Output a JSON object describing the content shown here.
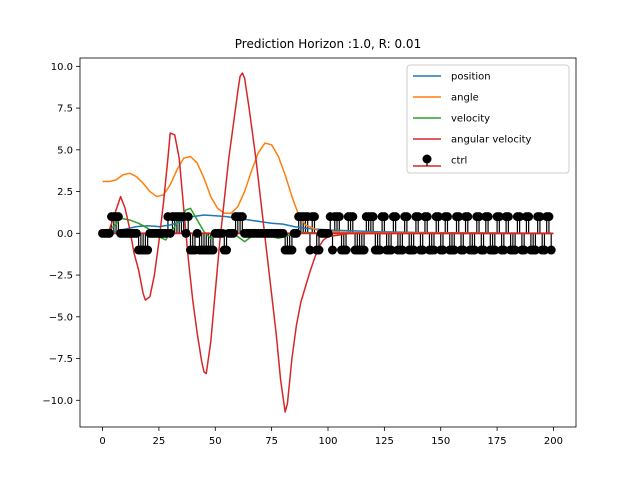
{
  "chart_data": {
    "type": "line",
    "title": "Prediction Horizon :1.0, R: 0.01",
    "xlabel": "",
    "ylabel": "",
    "xlim": [
      -10,
      210
    ],
    "ylim": [
      -11.6,
      10.5
    ],
    "x_ticks": [
      0,
      25,
      50,
      75,
      100,
      125,
      150,
      175,
      200
    ],
    "y_ticks": [
      10.0,
      7.5,
      5.0,
      2.5,
      0.0,
      -2.5,
      -5.0,
      -7.5,
      -10.0
    ],
    "x_tick_labels": [
      "0",
      "25",
      "50",
      "75",
      "100",
      "125",
      "150",
      "175",
      "200"
    ],
    "y_tick_labels": [
      "10.0",
      "7.5",
      "5.0",
      "2.5",
      "0.0",
      "−2.5",
      "−5.0",
      "−7.5",
      "−10.0"
    ],
    "grid": false,
    "legend": "top-right",
    "series": [
      {
        "name": "position",
        "color": "#1f77b4",
        "points": [
          [
            0,
            0
          ],
          [
            5,
            0.1
          ],
          [
            10,
            0.25
          ],
          [
            15,
            0.4
          ],
          [
            20,
            0.45
          ],
          [
            25,
            0.4
          ],
          [
            30,
            0.5
          ],
          [
            35,
            0.7
          ],
          [
            40,
            1.0
          ],
          [
            45,
            1.1
          ],
          [
            50,
            1.05
          ],
          [
            55,
            1.0
          ],
          [
            60,
            0.9
          ],
          [
            65,
            0.8
          ],
          [
            70,
            0.7
          ],
          [
            75,
            0.6
          ],
          [
            80,
            0.55
          ],
          [
            85,
            0.4
          ],
          [
            90,
            0.3
          ],
          [
            95,
            0.25
          ],
          [
            100,
            0.2
          ],
          [
            110,
            0.15
          ],
          [
            120,
            0.1
          ],
          [
            140,
            0.05
          ],
          [
            160,
            0.03
          ],
          [
            200,
            0.0
          ]
        ]
      },
      {
        "name": "angle",
        "color": "#ff7f0e",
        "points": [
          [
            0,
            3.1
          ],
          [
            3,
            3.1
          ],
          [
            6,
            3.2
          ],
          [
            9,
            3.5
          ],
          [
            12,
            3.6
          ],
          [
            15,
            3.4
          ],
          [
            18,
            3.0
          ],
          [
            21,
            2.5
          ],
          [
            24,
            2.2
          ],
          [
            27,
            2.3
          ],
          [
            30,
            2.9
          ],
          [
            33,
            3.8
          ],
          [
            36,
            4.5
          ],
          [
            39,
            4.6
          ],
          [
            42,
            4.2
          ],
          [
            45,
            3.3
          ],
          [
            48,
            2.2
          ],
          [
            51,
            1.5
          ],
          [
            54,
            1.2
          ],
          [
            57,
            1.2
          ],
          [
            60,
            1.6
          ],
          [
            63,
            2.5
          ],
          [
            66,
            3.7
          ],
          [
            69,
            4.8
          ],
          [
            72,
            5.4
          ],
          [
            75,
            5.3
          ],
          [
            78,
            4.6
          ],
          [
            81,
            3.5
          ],
          [
            84,
            2.2
          ],
          [
            87,
            1.1
          ],
          [
            90,
            0.5
          ],
          [
            95,
            0.2
          ],
          [
            100,
            0.1
          ],
          [
            110,
            0.05
          ],
          [
            200,
            0.0
          ]
        ]
      },
      {
        "name": "velocity",
        "color": "#2ca02c",
        "points": [
          [
            0,
            0
          ],
          [
            5,
            0.4
          ],
          [
            8,
            0.9
          ],
          [
            12,
            0.8
          ],
          [
            16,
            0.6
          ],
          [
            20,
            0.3
          ],
          [
            25,
            -0.2
          ],
          [
            28,
            -0.4
          ],
          [
            31,
            0.2
          ],
          [
            34,
            0.8
          ],
          [
            37,
            1.4
          ],
          [
            39,
            1.5
          ],
          [
            42,
            0.8
          ],
          [
            45,
            0.1
          ],
          [
            48,
            -0.3
          ],
          [
            51,
            -0.1
          ],
          [
            54,
            0.2
          ],
          [
            57,
            0.1
          ],
          [
            60,
            -0.2
          ],
          [
            63,
            -0.5
          ],
          [
            66,
            -0.2
          ],
          [
            69,
            0.2
          ],
          [
            72,
            0.1
          ],
          [
            75,
            -0.2
          ],
          [
            78,
            -0.3
          ],
          [
            81,
            -0.2
          ],
          [
            85,
            0.0
          ],
          [
            90,
            0.05
          ],
          [
            100,
            0.0
          ],
          [
            200,
            0.0
          ]
        ]
      },
      {
        "name": "angular velocity",
        "color": "#d62728",
        "points": [
          [
            0,
            0
          ],
          [
            3,
            0.2
          ],
          [
            5,
            1.0
          ],
          [
            7,
            1.8
          ],
          [
            8,
            2.2
          ],
          [
            10,
            1.5
          ],
          [
            12,
            0.3
          ],
          [
            14,
            -1.2
          ],
          [
            16,
            -2.2
          ],
          [
            18,
            -3.6
          ],
          [
            19,
            -4.0
          ],
          [
            21,
            -3.8
          ],
          [
            23,
            -2.5
          ],
          [
            25,
            -0.5
          ],
          [
            27,
            1.8
          ],
          [
            29,
            4.5
          ],
          [
            30,
            6.0
          ],
          [
            32,
            5.9
          ],
          [
            34,
            4.5
          ],
          [
            36,
            1.5
          ],
          [
            38,
            -1.5
          ],
          [
            40,
            -4.0
          ],
          [
            42,
            -6.0
          ],
          [
            44,
            -7.7
          ],
          [
            45,
            -8.3
          ],
          [
            46,
            -8.4
          ],
          [
            48,
            -6.5
          ],
          [
            50,
            -3.5
          ],
          [
            52,
            -0.5
          ],
          [
            54,
            2.0
          ],
          [
            56,
            4.5
          ],
          [
            58,
            6.5
          ],
          [
            60,
            8.5
          ],
          [
            61,
            9.4
          ],
          [
            62,
            9.6
          ],
          [
            63,
            9.3
          ],
          [
            65,
            7.5
          ],
          [
            68,
            4.5
          ],
          [
            71,
            1.0
          ],
          [
            74,
            -2.5
          ],
          [
            77,
            -6.0
          ],
          [
            79,
            -8.8
          ],
          [
            81,
            -10.7
          ],
          [
            82,
            -10.2
          ],
          [
            84,
            -7.5
          ],
          [
            86,
            -5.5
          ],
          [
            88,
            -4.1
          ],
          [
            90,
            -3.2
          ],
          [
            92,
            -2.3
          ],
          [
            94,
            -1.5
          ],
          [
            96,
            -0.8
          ],
          [
            98,
            -0.4
          ],
          [
            100,
            -0.2
          ],
          [
            105,
            -0.1
          ],
          [
            110,
            0.0
          ],
          [
            200,
            0.0
          ]
        ]
      }
    ],
    "stem_series": {
      "name": "ctrl",
      "marker_color": "#000000",
      "baseline_color": "#d62728",
      "values_by_x": [
        [
          0,
          0
        ],
        [
          1,
          0
        ],
        [
          2,
          0
        ],
        [
          3,
          0
        ],
        [
          4,
          1
        ],
        [
          5,
          1
        ],
        [
          6,
          1
        ],
        [
          7,
          1
        ],
        [
          8,
          0
        ],
        [
          9,
          0
        ],
        [
          10,
          0
        ],
        [
          11,
          0
        ],
        [
          12,
          0
        ],
        [
          13,
          0
        ],
        [
          14,
          0
        ],
        [
          15,
          0
        ],
        [
          16,
          -1
        ],
        [
          17,
          -1
        ],
        [
          18,
          -1
        ],
        [
          19,
          -1
        ],
        [
          20,
          -1
        ],
        [
          21,
          0
        ],
        [
          22,
          0
        ],
        [
          23,
          0
        ],
        [
          24,
          0
        ],
        [
          25,
          0
        ],
        [
          26,
          0
        ],
        [
          27,
          0
        ],
        [
          28,
          0
        ],
        [
          29,
          1
        ],
        [
          30,
          0
        ],
        [
          31,
          1
        ],
        [
          32,
          1
        ],
        [
          33,
          1
        ],
        [
          34,
          1
        ],
        [
          35,
          1
        ],
        [
          36,
          1
        ],
        [
          37,
          0
        ],
        [
          38,
          1
        ],
        [
          39,
          -1
        ],
        [
          40,
          -1
        ],
        [
          41,
          -1
        ],
        [
          42,
          0
        ],
        [
          43,
          -1
        ],
        [
          44,
          -1
        ],
        [
          45,
          -1
        ],
        [
          46,
          -1
        ],
        [
          47,
          -1
        ],
        [
          48,
          -1
        ],
        [
          49,
          -1
        ],
        [
          50,
          0
        ],
        [
          51,
          0
        ],
        [
          52,
          0
        ],
        [
          53,
          0
        ],
        [
          54,
          -1
        ],
        [
          55,
          -1
        ],
        [
          56,
          0
        ],
        [
          57,
          0
        ],
        [
          58,
          0
        ],
        [
          59,
          1
        ],
        [
          60,
          1
        ],
        [
          61,
          1
        ],
        [
          62,
          1
        ],
        [
          63,
          0
        ],
        [
          64,
          0
        ],
        [
          65,
          0
        ],
        [
          66,
          0
        ],
        [
          67,
          0
        ],
        [
          68,
          0
        ],
        [
          69,
          0
        ],
        [
          70,
          0
        ],
        [
          71,
          0
        ],
        [
          72,
          0
        ],
        [
          73,
          0
        ],
        [
          74,
          0
        ],
        [
          75,
          0
        ],
        [
          76,
          0
        ],
        [
          77,
          0
        ],
        [
          78,
          0
        ],
        [
          79,
          0
        ],
        [
          80,
          0
        ],
        [
          81,
          -1
        ],
        [
          82,
          -1
        ],
        [
          83,
          -1
        ],
        [
          84,
          -1
        ],
        [
          85,
          0
        ],
        [
          86,
          0
        ],
        [
          87,
          1
        ],
        [
          88,
          1
        ],
        [
          89,
          1
        ],
        [
          90,
          1
        ],
        [
          91,
          1
        ],
        [
          92,
          -1
        ],
        [
          93,
          1
        ],
        [
          94,
          1
        ],
        [
          95,
          -1
        ],
        [
          96,
          -1
        ],
        [
          97,
          0
        ],
        [
          98,
          0
        ],
        [
          99,
          0
        ],
        [
          100,
          0
        ],
        [
          101,
          1
        ],
        [
          102,
          -1
        ],
        [
          103,
          1
        ],
        [
          104,
          1
        ],
        [
          105,
          1
        ],
        [
          106,
          -1
        ],
        [
          107,
          -1
        ],
        [
          108,
          -1
        ],
        [
          109,
          1
        ],
        [
          110,
          1
        ],
        [
          111,
          1
        ],
        [
          112,
          -1
        ],
        [
          113,
          -1
        ],
        [
          114,
          -1
        ],
        [
          115,
          -1
        ],
        [
          116,
          -1
        ],
        [
          117,
          1
        ],
        [
          118,
          1
        ],
        [
          119,
          1
        ],
        [
          120,
          1
        ],
        [
          121,
          -1
        ],
        [
          122,
          -1
        ],
        [
          123,
          -1
        ],
        [
          124,
          1
        ],
        [
          125,
          1
        ],
        [
          126,
          -1
        ],
        [
          127,
          -1
        ],
        [
          128,
          -1
        ],
        [
          129,
          1
        ],
        [
          130,
          1
        ],
        [
          131,
          -1
        ],
        [
          132,
          -1
        ],
        [
          133,
          -1
        ],
        [
          134,
          1
        ],
        [
          135,
          1
        ],
        [
          136,
          -1
        ],
        [
          137,
          -1
        ],
        [
          138,
          -1
        ],
        [
          139,
          1
        ],
        [
          140,
          1
        ],
        [
          141,
          -1
        ],
        [
          142,
          -1
        ],
        [
          143,
          1
        ],
        [
          144,
          1
        ],
        [
          145,
          -1
        ],
        [
          146,
          -1
        ],
        [
          147,
          -1
        ],
        [
          148,
          1
        ],
        [
          149,
          1
        ],
        [
          150,
          -1
        ],
        [
          151,
          -1
        ],
        [
          152,
          1
        ],
        [
          153,
          1
        ],
        [
          154,
          -1
        ],
        [
          155,
          -1
        ],
        [
          156,
          -1
        ],
        [
          157,
          1
        ],
        [
          158,
          1
        ],
        [
          159,
          -1
        ],
        [
          160,
          -1
        ],
        [
          161,
          1
        ],
        [
          162,
          1
        ],
        [
          163,
          -1
        ],
        [
          164,
          -1
        ],
        [
          165,
          -1
        ],
        [
          166,
          1
        ],
        [
          167,
          1
        ],
        [
          168,
          -1
        ],
        [
          169,
          -1
        ],
        [
          170,
          1
        ],
        [
          171,
          1
        ],
        [
          172,
          -1
        ],
        [
          173,
          -1
        ],
        [
          174,
          -1
        ],
        [
          175,
          1
        ],
        [
          176,
          1
        ],
        [
          177,
          -1
        ],
        [
          178,
          -1
        ],
        [
          179,
          1
        ],
        [
          180,
          1
        ],
        [
          181,
          -1
        ],
        [
          182,
          -1
        ],
        [
          183,
          -1
        ],
        [
          184,
          1
        ],
        [
          185,
          1
        ],
        [
          186,
          -1
        ],
        [
          187,
          -1
        ],
        [
          188,
          1
        ],
        [
          189,
          1
        ],
        [
          190,
          -1
        ],
        [
          191,
          -1
        ],
        [
          192,
          -1
        ],
        [
          193,
          1
        ],
        [
          194,
          1
        ],
        [
          195,
          -1
        ],
        [
          196,
          -1
        ],
        [
          197,
          1
        ],
        [
          198,
          1
        ],
        [
          199,
          -1
        ]
      ]
    }
  }
}
